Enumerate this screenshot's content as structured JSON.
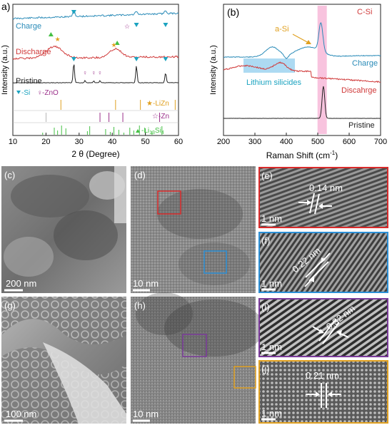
{
  "panel_labels": {
    "a": "a)",
    "b": "(b)",
    "c": "(c)",
    "d": "(d)",
    "e": "(e)",
    "f": "(f)",
    "g": "(g)",
    "h": "(h)",
    "i": "(i)",
    "j": "(j)"
  },
  "colors": {
    "charge": "#2a8bb8",
    "discharge": "#d03a3a",
    "pristine": "#222222",
    "si_marker": "#1ba3c0",
    "zno_marker": "#9b2f8a",
    "lizn_marker": "#e0a020",
    "li13si4_marker": "#44c044",
    "highlight_pink": "#f7b8d8",
    "highlight_blue": "#9fd4f0",
    "box_red": "#d92b2b",
    "box_blue": "#2b8fd6",
    "box_purple": "#7a3a9a",
    "box_yellow": "#e0a020"
  },
  "xrd": {
    "xlabel": "2 θ (Degree)",
    "ylabel": "Intensity (a.u.)",
    "xlim": [
      10,
      60
    ],
    "xticks": [
      "10",
      "20",
      "30",
      "40",
      "50",
      "60"
    ],
    "curve_labels": {
      "charge": "Charge",
      "discharge": "Discharge",
      "pristine": "Pristine"
    },
    "legend": {
      "si": "-Si",
      "zno": "-ZnO",
      "lizn": "-LiZn",
      "zn": "-Zn",
      "li13si4_main": "-Li",
      "li13si4_sub1": "13",
      "li13si4_mid": "Si",
      "li13si4_sub2": "4"
    }
  },
  "raman": {
    "xlabel_main": "Raman Shift (cm",
    "xlabel_sup": "-1",
    "xlabel_end": ")",
    "ylabel": "Intensity (a.u.)",
    "xlim": [
      200,
      700
    ],
    "xticks": [
      "200",
      "300",
      "400",
      "500",
      "600",
      "700"
    ],
    "curve_labels": {
      "charge": "Charge",
      "discharge": "Discahrge",
      "pristine": "Pristine"
    },
    "annotations": {
      "asi": "a-Si",
      "csi": "C-Si",
      "silicides": "Lithium silicides"
    }
  },
  "chart_data": [
    {
      "type": "line",
      "title": "",
      "xlabel": "2 θ (Degree)",
      "ylabel": "Intensity (a.u.)",
      "xlim": [
        10,
        60
      ],
      "series": [
        {
          "name": "Charge",
          "peaks": [
            28.4,
            47.3,
            56.1
          ]
        },
        {
          "name": "Discharge",
          "peaks": [
            22.5,
            41.0
          ]
        },
        {
          "name": "Pristine",
          "peaks": [
            28.4,
            31.8,
            34.4,
            36.3,
            47.3,
            56.1
          ]
        }
      ],
      "reference_lines": {
        "LiZn": [
          24.5,
          41.0,
          48.5,
          59.0
        ],
        "Zn": [
          36.3,
          39.0,
          43.2,
          54.3
        ],
        "Li13Si4": [
          19.0,
          22.5,
          23.5,
          24.7,
          26.0,
          32.5,
          33.2,
          38.0,
          39.4,
          40.5,
          42.0,
          43.5,
          45.3,
          46.5,
          48.2,
          50.0,
          52.0,
          55.0
        ]
      }
    },
    {
      "type": "line",
      "title": "",
      "xlabel": "Raman Shift (cm-1)",
      "ylabel": "Intensity (a.u.)",
      "xlim": [
        200,
        700
      ],
      "series": [
        {
          "name": "Charge",
          "peaks": [
            355,
            510
          ]
        },
        {
          "name": "Discahrge",
          "peaks": [
            380
          ]
        },
        {
          "name": "Pristine",
          "peaks": [
            520
          ]
        }
      ]
    }
  ],
  "micrographs": {
    "c_scale": "200 nm",
    "d_scale": "10 nm",
    "e_scale": "1 nm",
    "e_spacing": "0.14 nm",
    "f_scale": "1 nm",
    "f_spacing": "0.22 nm",
    "g_scale": "100 nm",
    "h_scale": "10 nm",
    "i_scale": "1 nm",
    "i_spacing": "0.32 nm",
    "j_scale": "1 nm",
    "j_spacing": "0.21 nm"
  }
}
